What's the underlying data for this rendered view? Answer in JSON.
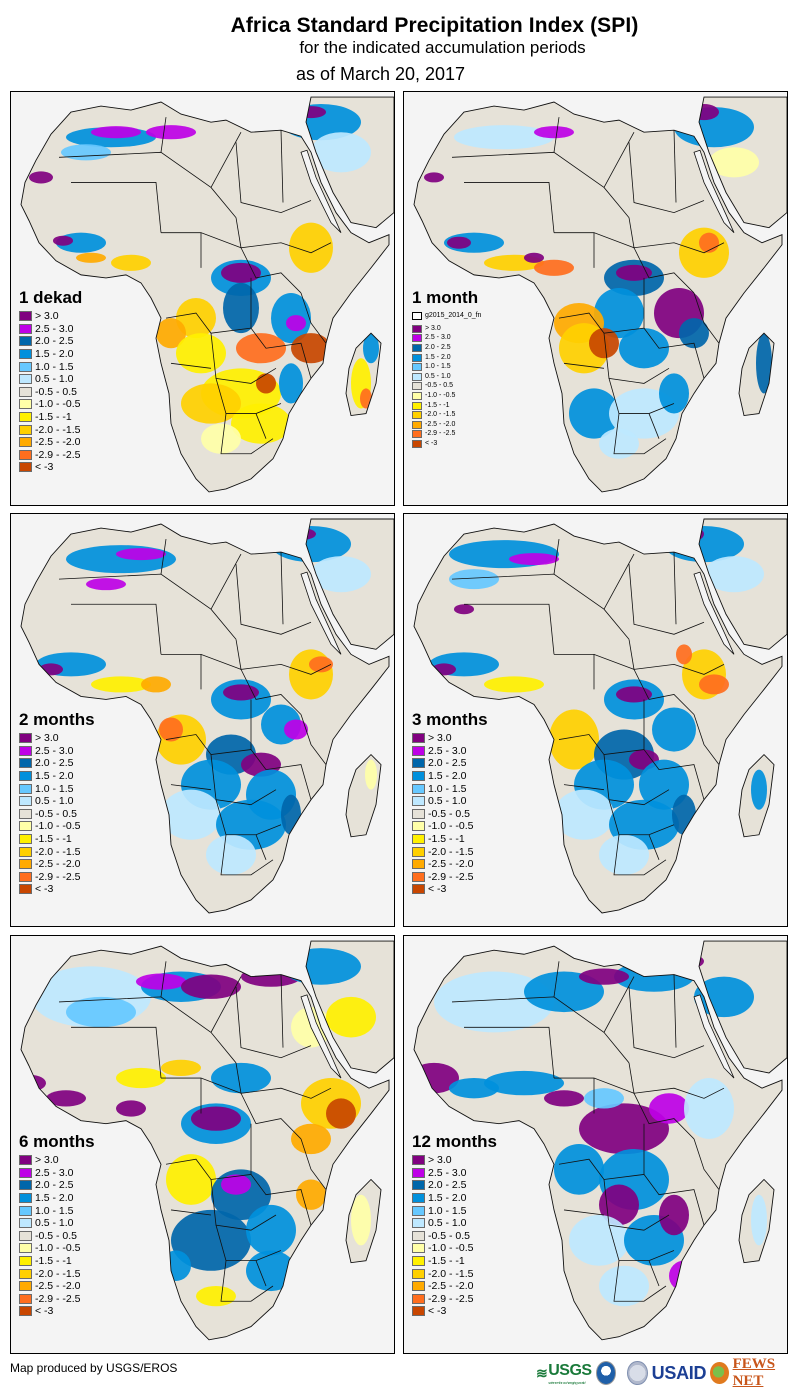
{
  "header": {
    "title": "Africa Standard Precipitation Index (SPI)",
    "subtitle": "for the indicated accumulation periods",
    "date_line": "as of March 20, 2017"
  },
  "legend_classes": [
    {
      "label": "> 3.0",
      "color": "#800080"
    },
    {
      "label": "2.5 - 3.0",
      "color": "#BE00E6"
    },
    {
      "label": "2.0 - 2.5",
      "color": "#0066AA"
    },
    {
      "label": "1.5 - 2.0",
      "color": "#0090DC"
    },
    {
      "label": "1.0 - 1.5",
      "color": "#66C8FF"
    },
    {
      "label": "0.5 - 1.0",
      "color": "#BEE8FF"
    },
    {
      "label": "-0.5 - 0.5",
      "color": "#E6E2D8"
    },
    {
      "label": "-1.0 - -0.5",
      "color": "#FFFFA8"
    },
    {
      "label": "-1.5 - -1",
      "color": "#FFF000"
    },
    {
      "label": "-2.0 - -1.5",
      "color": "#FFD000"
    },
    {
      "label": "-2.5 - -2.0",
      "color": "#FFAA00"
    },
    {
      "label": "-2.9 - -2.5",
      "color": "#FF6E1E"
    },
    {
      "label": "< -3",
      "color": "#C84600"
    }
  ],
  "panels": [
    {
      "id": "1dekad",
      "title": "1 dekad",
      "extra_legend_item": null
    },
    {
      "id": "1month",
      "title": "1 month",
      "extra_legend_item": "g2015_2014_0_fn"
    },
    {
      "id": "2months",
      "title": "2 months",
      "extra_legend_item": null
    },
    {
      "id": "3months",
      "title": "3 months",
      "extra_legend_item": null
    },
    {
      "id": "6months",
      "title": "6 months",
      "extra_legend_item": null
    },
    {
      "id": "12months",
      "title": "12 months",
      "extra_legend_item": null
    }
  ],
  "footer": {
    "credit": "Map produced by USGS/EROS",
    "logos": {
      "usgs": "USGS",
      "usgs_tagline": "science for a changing world",
      "noaa": "NOAA",
      "usaid": "USAID",
      "fews": "FEWS NET"
    }
  }
}
